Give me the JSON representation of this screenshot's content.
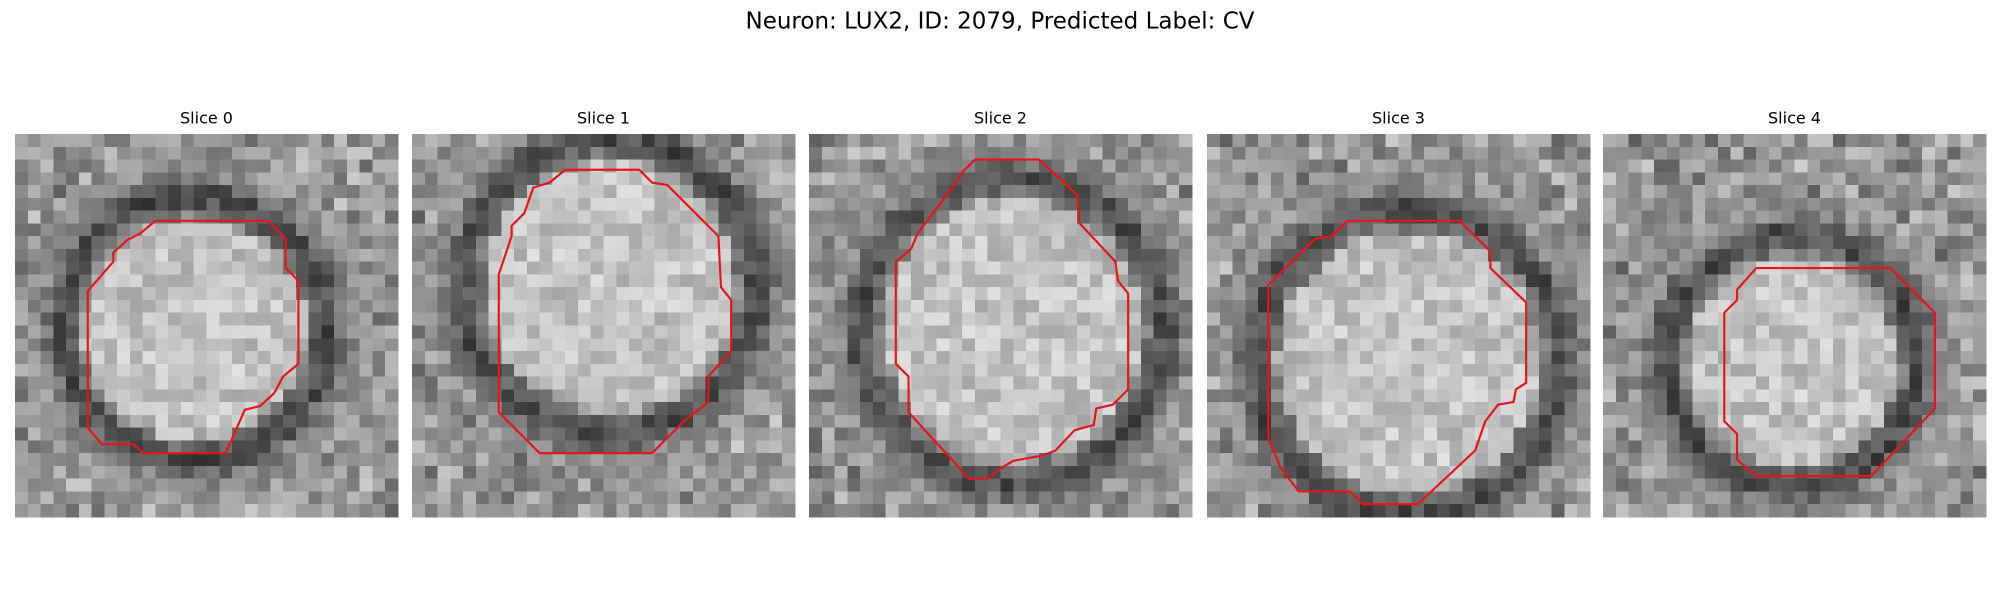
{
  "title": "Neuron: LUX2, ID: 2079, Predicted Label: CV",
  "panels": [
    {
      "title": "Slice 0"
    },
    {
      "title": "Slice 1"
    },
    {
      "title": "Slice 2"
    },
    {
      "title": "Slice 3"
    },
    {
      "title": "Slice 4"
    }
  ]
}
